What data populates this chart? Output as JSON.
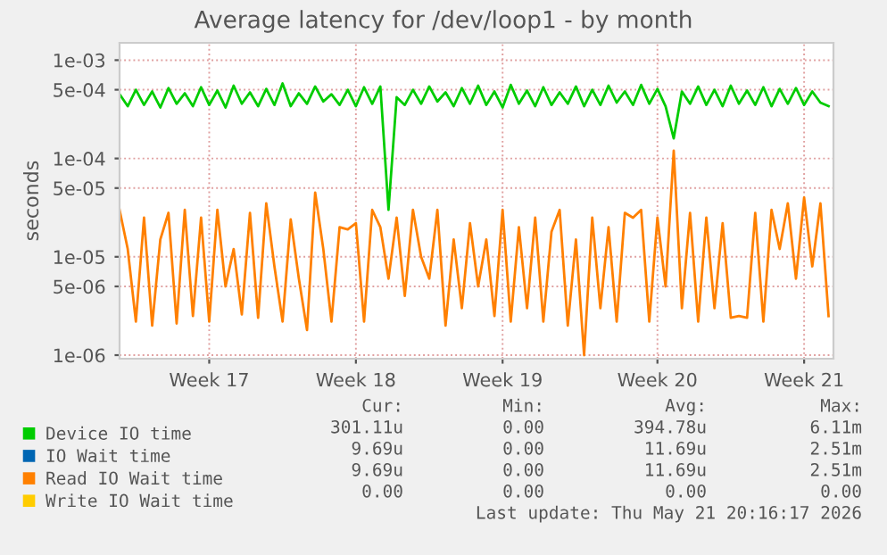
{
  "chart_data": {
    "type": "line",
    "title": "Average latency for /dev/loop1 - by month",
    "ylabel": "seconds",
    "log": "y",
    "grid": true,
    "legend": "bottom",
    "line_style": "solid",
    "marker": "none",
    "categories": [
      null,
      null,
      null,
      null,
      null,
      null,
      null,
      null,
      null,
      null,
      null,
      "Week 17",
      null,
      null,
      null,
      null,
      null,
      null,
      null,
      null,
      null,
      null,
      null,
      null,
      null,
      null,
      null,
      null,
      null,
      "Week 18",
      null,
      null,
      null,
      null,
      null,
      null,
      null,
      null,
      null,
      null,
      null,
      null,
      null,
      null,
      null,
      null,
      null,
      "Week 19",
      null,
      null,
      null,
      null,
      null,
      null,
      null,
      null,
      null,
      null,
      null,
      null,
      null,
      null,
      null,
      null,
      null,
      null,
      "Week 20",
      null,
      null,
      null,
      null,
      null,
      null,
      null,
      null,
      null,
      null,
      null,
      null,
      null,
      null,
      null,
      null,
      null,
      "Week 21",
      null,
      null,
      null
    ],
    "ylim": [
      9.2e-07,
      0.0015
    ],
    "yticks": [
      {
        "value": 1e-06,
        "label": "1e-06"
      },
      {
        "value": 5e-06,
        "label": "5e-06"
      },
      {
        "value": 1e-05,
        "label": "1e-05"
      },
      {
        "value": 5e-05,
        "label": "5e-05"
      },
      {
        "value": 0.0001,
        "label": "1e-04"
      },
      {
        "value": 0.0005,
        "label": "5e-04"
      },
      {
        "value": 0.001,
        "label": "1e-03"
      }
    ],
    "series": [
      {
        "name": "Device IO time",
        "color": "#00cc00",
        "values": [
          0.00045,
          0.00034,
          0.0005,
          0.00035,
          0.00048,
          0.00033,
          0.00052,
          0.00036,
          0.00046,
          0.00034,
          0.00053,
          0.00035,
          0.00049,
          0.00033,
          0.00055,
          0.00036,
          0.00047,
          0.00034,
          0.00051,
          0.00035,
          0.00058,
          0.00034,
          0.00046,
          0.00036,
          0.00054,
          0.00038,
          0.00045,
          0.00035,
          0.0005,
          0.00034,
          0.00053,
          0.00036,
          0.00054,
          3e-05,
          0.00042,
          0.00035,
          0.0005,
          0.00036,
          0.00054,
          0.00038,
          0.00047,
          0.00034,
          0.00052,
          0.00036,
          0.00055,
          0.00035,
          0.00048,
          0.00033,
          0.00056,
          0.00036,
          0.00049,
          0.00034,
          0.00053,
          0.00035,
          0.00047,
          0.00036,
          0.00054,
          0.00034,
          0.0005,
          0.00035,
          0.00055,
          0.00037,
          0.00048,
          0.00035,
          0.00056,
          0.00036,
          0.00051,
          0.00034,
          0.00016,
          0.00048,
          0.00036,
          0.00054,
          0.00035,
          0.0005,
          0.00034,
          0.00055,
          0.00036,
          0.00049,
          0.00035,
          0.00053,
          0.00034,
          0.00051,
          0.00036,
          0.00052,
          0.00035,
          0.00048,
          0.00037,
          0.00034
        ]
      },
      {
        "name": "IO Wait time",
        "color": "#0066b3",
        "values": [
          null,
          null,
          null,
          null,
          null,
          null,
          null,
          null,
          null,
          null,
          null,
          null,
          null,
          null,
          null,
          null,
          null,
          null,
          null,
          null,
          null,
          null,
          null,
          null,
          null,
          null,
          null,
          null,
          null,
          null,
          null,
          null,
          null,
          null,
          null,
          null,
          null,
          null,
          null,
          null,
          null,
          null,
          null,
          null,
          null,
          null,
          null,
          null,
          null,
          null,
          null,
          null,
          null,
          null,
          null,
          null,
          null,
          null,
          null,
          null,
          null,
          null,
          null,
          null,
          null,
          null,
          null,
          null,
          null,
          null,
          null,
          null,
          null,
          null,
          null,
          null,
          null,
          null,
          null,
          null,
          null,
          null,
          null,
          null,
          null,
          null,
          null,
          null
        ]
      },
      {
        "name": "Read IO Wait time",
        "color": "#ff8000",
        "values": [
          3e-05,
          1.2e-05,
          2.2e-06,
          2.5e-05,
          2e-06,
          1.5e-05,
          2.8e-05,
          2.1e-06,
          3e-05,
          2.5e-06,
          2.5e-05,
          2.2e-06,
          3e-05,
          5e-06,
          1.2e-05,
          2.6e-06,
          2.8e-05,
          2.4e-06,
          3.5e-05,
          8e-06,
          2.2e-06,
          2.4e-05,
          6e-06,
          1.8e-06,
          4.5e-05,
          1.2e-05,
          2.2e-06,
          2e-05,
          1.9e-05,
          2.2e-05,
          2.2e-06,
          3e-05,
          2e-05,
          6e-06,
          2.5e-05,
          4e-06,
          3e-05,
          1e-05,
          6e-06,
          3e-05,
          2e-06,
          1.5e-05,
          3e-06,
          2.2e-05,
          5e-06,
          1.5e-05,
          2.5e-06,
          3e-05,
          2.2e-06,
          2e-05,
          3e-06,
          2.5e-05,
          2.2e-06,
          1.8e-05,
          3e-05,
          2e-06,
          1.5e-05,
          1e-06,
          2.5e-05,
          3e-06,
          2e-05,
          2.2e-06,
          2.8e-05,
          2.5e-05,
          3e-05,
          2.2e-06,
          2.5e-05,
          5e-06,
          0.00012,
          3e-06,
          2.8e-05,
          2.2e-06,
          2.5e-05,
          3e-06,
          2.2e-05,
          2.4e-06,
          2.5e-06,
          2.4e-06,
          2.8e-05,
          2.2e-06,
          3e-05,
          1.2e-05,
          3.5e-05,
          6e-06,
          4e-05,
          8e-06,
          3.5e-05,
          2.5e-06
        ]
      },
      {
        "name": "Write IO Wait time",
        "color": "#ffcc00",
        "values": [
          null,
          null,
          null,
          null,
          null,
          null,
          null,
          null,
          null,
          null,
          null,
          null,
          null,
          null,
          null,
          null,
          null,
          null,
          null,
          null,
          null,
          null,
          null,
          null,
          null,
          null,
          null,
          null,
          null,
          null,
          null,
          null,
          null,
          null,
          null,
          null,
          null,
          null,
          null,
          null,
          null,
          null,
          null,
          null,
          null,
          null,
          null,
          null,
          null,
          null,
          null,
          null,
          null,
          null,
          null,
          null,
          null,
          null,
          null,
          null,
          null,
          null,
          null,
          null,
          null,
          null,
          null,
          null,
          null,
          null,
          null,
          null,
          null,
          null,
          null,
          null,
          null,
          null,
          null,
          null,
          null,
          null,
          null,
          null,
          null,
          null,
          null,
          null
        ]
      }
    ],
    "annotations": [
      "Cur:",
      "Min:",
      "Avg:",
      "Max:",
      "301.11u",
      "0.00",
      "394.78u",
      "6.11m",
      "9.69u",
      "0.00",
      "11.69u",
      "2.51m",
      "9.69u",
      "0.00",
      "11.69u",
      "2.51m",
      "0.00",
      "0.00",
      "0.00",
      "0.00",
      "Last update: Thu May 21 20:16:17 2026"
    ]
  }
}
